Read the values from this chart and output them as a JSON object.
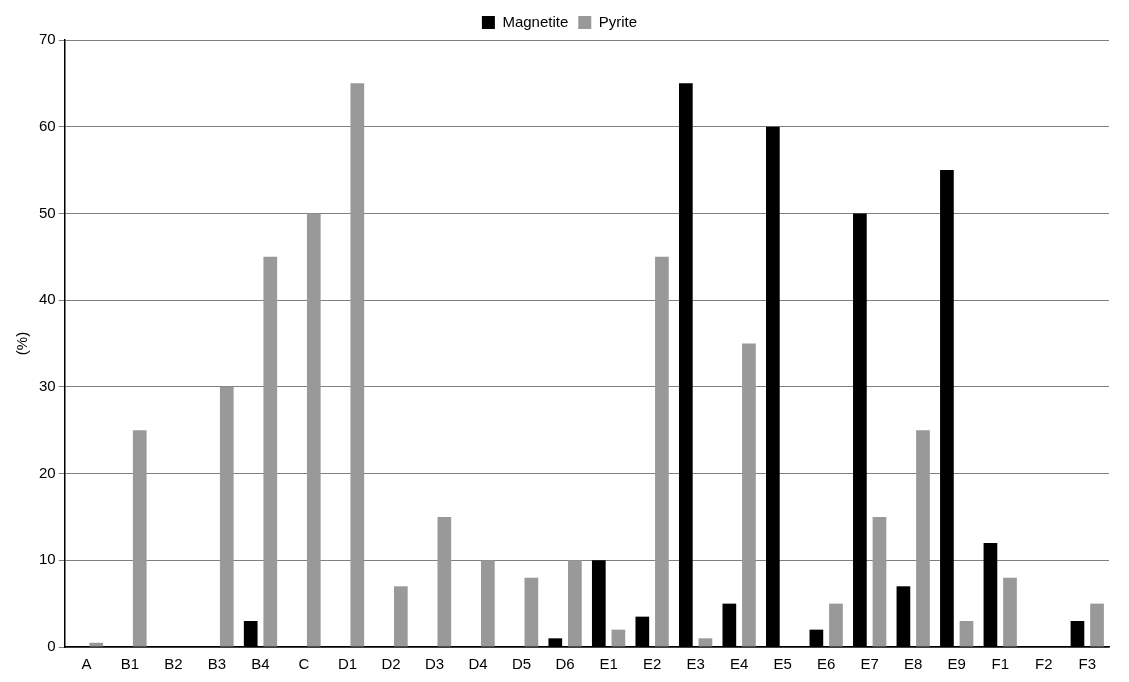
{
  "chart_data": {
    "type": "bar",
    "ylabel": "(%)",
    "categories": [
      "A",
      "B1",
      "B2",
      "B3",
      "B4",
      "C",
      "D1",
      "D2",
      "D3",
      "D4",
      "D5",
      "D6",
      "E1",
      "E2",
      "E3",
      "E4",
      "E5",
      "E6",
      "E7",
      "E8",
      "E9",
      "F1",
      "F2",
      "F3"
    ],
    "series": [
      {
        "name": "Magnetite",
        "color": "#000000",
        "values": [
          0,
          0,
          0,
          0,
          3,
          0,
          0,
          0,
          0,
          0,
          0,
          1,
          10,
          3.5,
          65,
          5,
          60,
          2,
          50,
          7,
          55,
          12,
          0,
          3
        ]
      },
      {
        "name": "Pyrite",
        "color": "#999999",
        "values": [
          0.5,
          25,
          0,
          30,
          45,
          50,
          65,
          7,
          15,
          10,
          8,
          10,
          2,
          45,
          1,
          35,
          0,
          5,
          15,
          25,
          3,
          8,
          0,
          5
        ]
      }
    ],
    "ylim": [
      0,
      70
    ],
    "yticks": [
      0,
      10,
      20,
      30,
      40,
      50,
      60,
      70
    ],
    "grid": "y",
    "legend": "top"
  }
}
